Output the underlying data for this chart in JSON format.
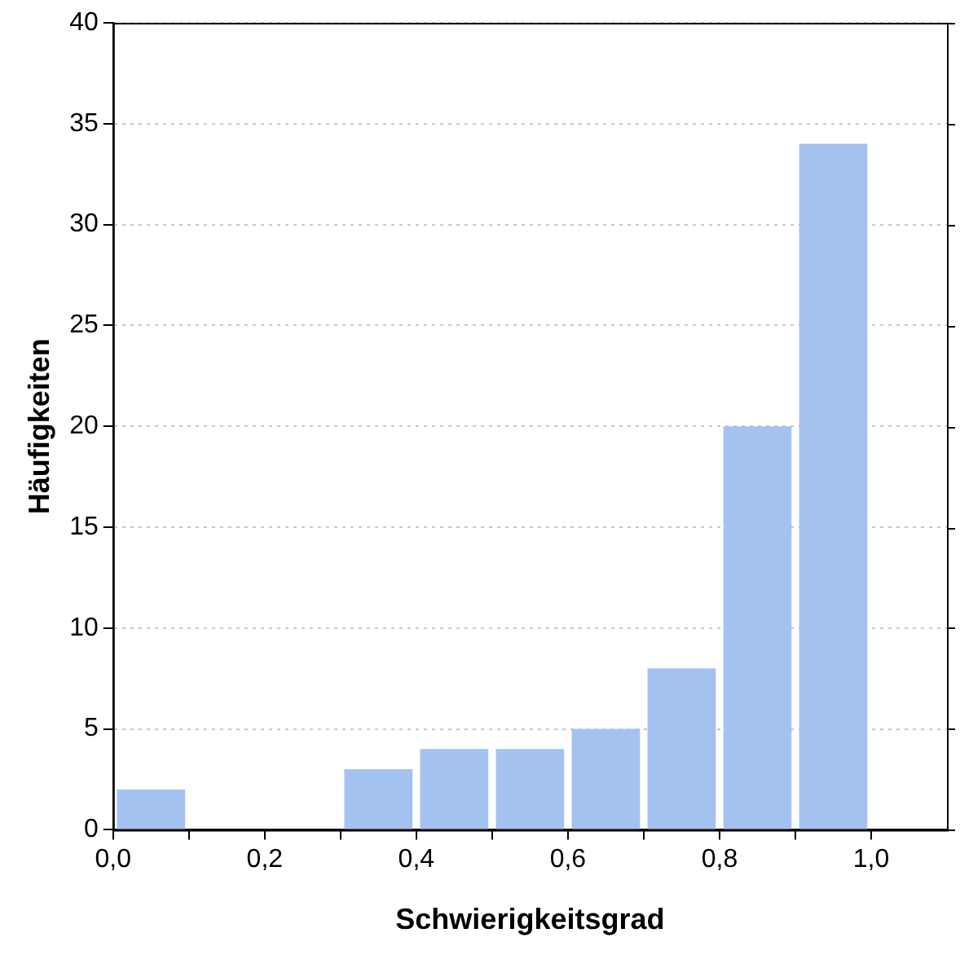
{
  "chart_data": {
    "type": "histogram",
    "xlabel": "Schwierigkeitsgrad",
    "ylabel": "Häufigkeiten",
    "bins": [
      0,
      0.1,
      0.2,
      0.3,
      0.4,
      0.5,
      0.6,
      0.7,
      0.8,
      0.9,
      1.0,
      1.1
    ],
    "values": [
      2,
      0,
      0,
      3,
      4,
      4,
      5,
      8,
      20,
      34,
      0
    ],
    "color": "#a4c2f0",
    "xlim": [
      0,
      1.1
    ],
    "xticks": [
      {
        "value": 0,
        "label": "0,0"
      },
      {
        "value": 0.1,
        "label": null
      },
      {
        "value": 0.2,
        "label": "0,2"
      },
      {
        "value": 0.3,
        "label": null
      },
      {
        "value": 0.4,
        "label": "0,4"
      },
      {
        "value": 0.5,
        "label": null
      },
      {
        "value": 0.6,
        "label": "0,6"
      },
      {
        "value": 0.7,
        "label": null
      },
      {
        "value": 0.8,
        "label": "0,8"
      },
      {
        "value": 0.9,
        "label": null
      },
      {
        "value": 1.0,
        "label": "1,0"
      }
    ],
    "ylim": [
      0,
      40
    ],
    "yticks": [
      0,
      5,
      10,
      15,
      20,
      25,
      30,
      35,
      40
    ],
    "grid": "y",
    "legend": false
  }
}
